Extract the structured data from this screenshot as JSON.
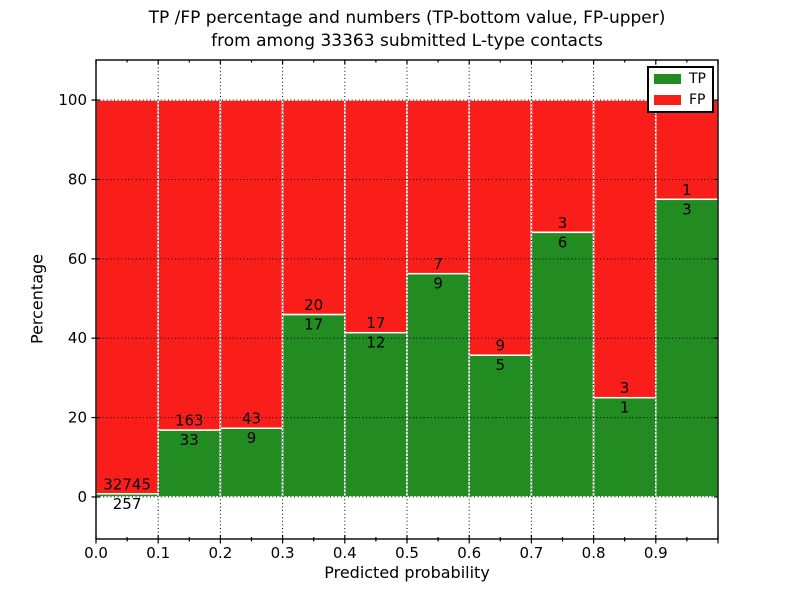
{
  "figure": {
    "title_lines": [
      "TP /FP percentage and numbers (TP-bottom value, FP-upper)",
      "from among 33363 submitted L-type contacts"
    ]
  },
  "chart_data": {
    "type": "bar",
    "stacked": true,
    "normalized_to_percent": true,
    "title": "TP /FP percentage and numbers (TP-bottom value, FP-upper) from among 33363 submitted L-type contacts",
    "xlabel": "Predicted probability",
    "ylabel": "Percentage",
    "total_contacts": 33363,
    "bin_width": 0.1,
    "xlim": [
      0.0,
      1.0
    ],
    "ylim": [
      -10.6,
      110.1
    ],
    "x_ticks": [
      "0.0",
      "0.1",
      "0.2",
      "0.3",
      "0.4",
      "0.5",
      "0.6",
      "0.7",
      "0.8",
      "0.9"
    ],
    "y_ticks": [
      0,
      20,
      40,
      60,
      80,
      100
    ],
    "grid": "dotted",
    "legend_position": "upper right",
    "series": [
      {
        "name": "TP",
        "color": "#228B22"
      },
      {
        "name": "FP",
        "color": "#FA1E1A"
      }
    ],
    "bins": [
      {
        "x_start": 0.0,
        "tp": 257,
        "fp": 32745,
        "tp_percent": 0.78
      },
      {
        "x_start": 0.1,
        "tp": 33,
        "fp": 163,
        "tp_percent": 16.84
      },
      {
        "x_start": 0.2,
        "tp": 9,
        "fp": 43,
        "tp_percent": 17.31
      },
      {
        "x_start": 0.3,
        "tp": 17,
        "fp": 20,
        "tp_percent": 45.95
      },
      {
        "x_start": 0.4,
        "tp": 12,
        "fp": 17,
        "tp_percent": 41.38
      },
      {
        "x_start": 0.5,
        "tp": 9,
        "fp": 7,
        "tp_percent": 56.25
      },
      {
        "x_start": 0.6,
        "tp": 5,
        "fp": 9,
        "tp_percent": 35.71
      },
      {
        "x_start": 0.7,
        "tp": 6,
        "fp": 3,
        "tp_percent": 66.67
      },
      {
        "x_start": 0.8,
        "tp": 1,
        "fp": 3,
        "tp_percent": 25.0
      },
      {
        "x_start": 0.9,
        "tp": 3,
        "fp": 1,
        "tp_percent": 75.0
      }
    ]
  }
}
